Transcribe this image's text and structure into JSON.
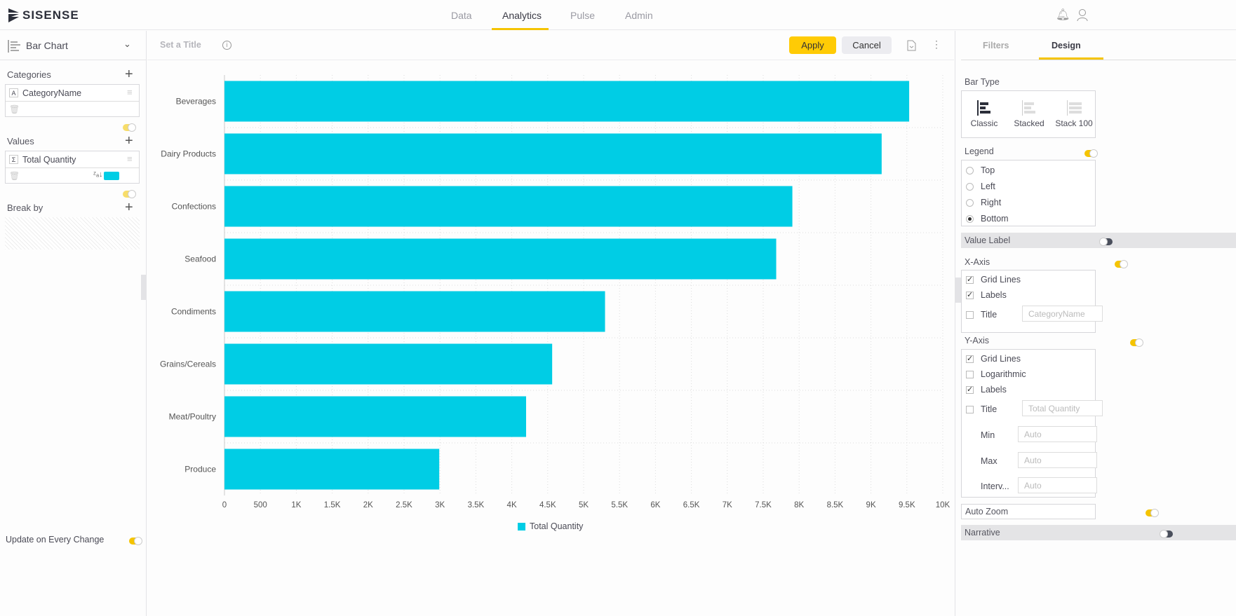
{
  "app": {
    "logo": "SISENSE",
    "nav": [
      {
        "label": "Data"
      },
      {
        "label": "Analytics",
        "active": true
      },
      {
        "label": "Pulse"
      },
      {
        "label": "Admin"
      }
    ]
  },
  "left": {
    "chart_type": "Bar Chart",
    "categories": {
      "title": "Categories",
      "field": "CategoryName",
      "type_icon": "A"
    },
    "values": {
      "title": "Values",
      "field": "Total Quantity",
      "type_icon": "Σ",
      "color": "#00cde5"
    },
    "break_by": {
      "title": "Break by"
    },
    "update_label": "Update on Every Change"
  },
  "toolbar": {
    "title_placeholder": "Set a Title",
    "apply": "Apply",
    "cancel": "Cancel"
  },
  "right": {
    "tabs": [
      "Filters",
      "Design"
    ],
    "active_tab": "Design",
    "bar_type": {
      "label": "Bar Type",
      "options": [
        "Classic",
        "Stacked",
        "Stack 100"
      ],
      "selected": "Classic"
    },
    "legend": {
      "label": "Legend",
      "enabled": true,
      "options": [
        "Top",
        "Left",
        "Right",
        "Bottom"
      ],
      "selected": "Bottom"
    },
    "value_label": {
      "label": "Value Label",
      "enabled": false
    },
    "x_axis": {
      "label": "X-Axis",
      "enabled": true,
      "grid_lines": "Grid Lines",
      "labels": "Labels",
      "title": "Title",
      "title_placeholder": "CategoryName"
    },
    "y_axis": {
      "label": "Y-Axis",
      "enabled": true,
      "grid_lines": "Grid Lines",
      "logarithmic": "Logarithmic",
      "labels": "Labels",
      "title": "Title",
      "title_placeholder": "Total Quantity",
      "min": "Min",
      "max": "Max",
      "interval": "Interv...",
      "auto": "Auto"
    },
    "auto_zoom": {
      "label": "Auto Zoom",
      "enabled": true
    },
    "narrative": {
      "label": "Narrative",
      "enabled": false
    }
  },
  "chart_data": {
    "type": "bar",
    "orientation": "horizontal",
    "categories": [
      "Beverages",
      "Dairy Products",
      "Confections",
      "Seafood",
      "Condiments",
      "Grains/Cereals",
      "Meat/Poultry",
      "Produce"
    ],
    "series": [
      {
        "name": "Total Quantity",
        "values": [
          9532,
          9149,
          7906,
          7681,
          5298,
          4562,
          4199,
          2990
        ],
        "color": "#00cde5"
      }
    ],
    "xlim": [
      0,
      10000
    ],
    "tick_labels": [
      "0",
      "500",
      "1K",
      "1.5K",
      "2K",
      "2.5K",
      "3K",
      "3.5K",
      "4K",
      "4.5K",
      "5K",
      "5.5K",
      "6K",
      "6.5K",
      "7K",
      "7.5K",
      "8K",
      "8.5K",
      "9K",
      "9.5K",
      "10K"
    ],
    "grid": true,
    "legend": "bottom"
  }
}
